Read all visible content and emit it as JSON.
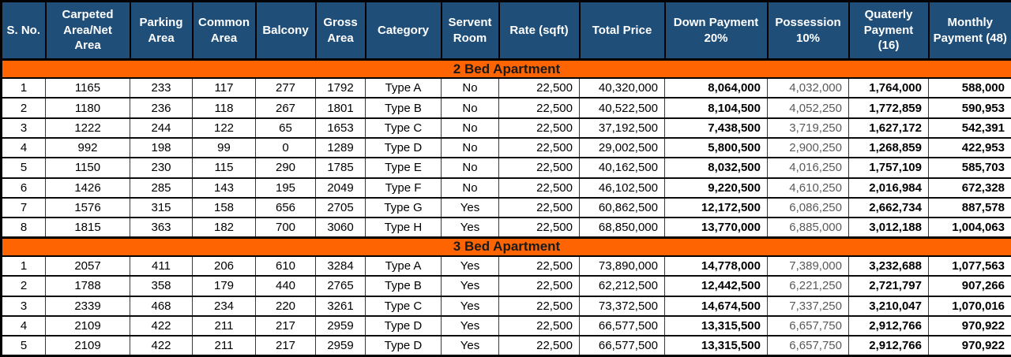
{
  "table": {
    "columns": [
      "S. No.",
      "Carpeted Area/Net Area",
      "Parking Area",
      "Common Area",
      "Balcony",
      "Gross Area",
      "Category",
      "Servent Room",
      "Rate (sqft)",
      "Total Price",
      "Down Payment 20%",
      "Possession 10%",
      "Quaterly Payment (16)",
      "Monthly Payment (48)"
    ],
    "sections": [
      {
        "title": "2 Bed Apartment",
        "rows": [
          [
            "1",
            "1165",
            "233",
            "117",
            "277",
            "1792",
            "Type A",
            "No",
            "22,500",
            "40,320,000",
            "8,064,000",
            "4,032,000",
            "1,764,000",
            "588,000"
          ],
          [
            "2",
            "1180",
            "236",
            "118",
            "267",
            "1801",
            "Type B",
            "No",
            "22,500",
            "40,522,500",
            "8,104,500",
            "4,052,250",
            "1,772,859",
            "590,953"
          ],
          [
            "3",
            "1222",
            "244",
            "122",
            "65",
            "1653",
            "Type C",
            "No",
            "22,500",
            "37,192,500",
            "7,438,500",
            "3,719,250",
            "1,627,172",
            "542,391"
          ],
          [
            "4",
            "992",
            "198",
            "99",
            "0",
            "1289",
            "Type D",
            "No",
            "22,500",
            "29,002,500",
            "5,800,500",
            "2,900,250",
            "1,268,859",
            "422,953"
          ],
          [
            "5",
            "1150",
            "230",
            "115",
            "290",
            "1785",
            "Type E",
            "No",
            "22,500",
            "40,162,500",
            "8,032,500",
            "4,016,250",
            "1,757,109",
            "585,703"
          ],
          [
            "6",
            "1426",
            "285",
            "143",
            "195",
            "2049",
            "Type F",
            "No",
            "22,500",
            "46,102,500",
            "9,220,500",
            "4,610,250",
            "2,016,984",
            "672,328"
          ],
          [
            "7",
            "1576",
            "315",
            "158",
            "656",
            "2705",
            "Type G",
            "Yes",
            "22,500",
            "60,862,500",
            "12,172,500",
            "6,086,250",
            "2,662,734",
            "887,578"
          ],
          [
            "8",
            "1815",
            "363",
            "182",
            "700",
            "3060",
            "Type H",
            "Yes",
            "22,500",
            "68,850,000",
            "13,770,000",
            "6,885,000",
            "3,012,188",
            "1,004,063"
          ]
        ]
      },
      {
        "title": "3 Bed Apartment",
        "rows": [
          [
            "1",
            "2057",
            "411",
            "206",
            "610",
            "3284",
            "Type A",
            "Yes",
            "22,500",
            "73,890,000",
            "14,778,000",
            "7,389,000",
            "3,232,688",
            "1,077,563"
          ],
          [
            "2",
            "1788",
            "358",
            "179",
            "440",
            "2765",
            "Type B",
            "Yes",
            "22,500",
            "62,212,500",
            "12,442,500",
            "6,221,250",
            "2,721,797",
            "907,266"
          ],
          [
            "3",
            "2339",
            "468",
            "234",
            "220",
            "3261",
            "Type C",
            "Yes",
            "22,500",
            "73,372,500",
            "14,674,500",
            "7,337,250",
            "3,210,047",
            "1,070,016"
          ],
          [
            "4",
            "2109",
            "422",
            "211",
            "217",
            "2959",
            "Type D",
            "Yes",
            "22,500",
            "66,577,500",
            "13,315,500",
            "6,657,750",
            "2,912,766",
            "970,922"
          ],
          [
            "5",
            "2109",
            "422",
            "211",
            "217",
            "2959",
            "Type D",
            "Yes",
            "22,500",
            "66,577,500",
            "13,315,500",
            "6,657,750",
            "2,912,766",
            "970,922"
          ]
        ]
      }
    ]
  },
  "colors": {
    "header_bg": "#1F4E79",
    "header_text": "#FFFFFF",
    "section_bg": "#FE6502",
    "section_text": "#1A1A1A",
    "possession_text": "#595959",
    "border": "#000000"
  }
}
